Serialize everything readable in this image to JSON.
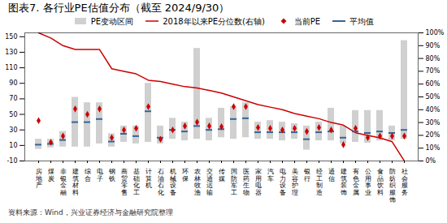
{
  "chart_data": {
    "type": "bar",
    "title": "图表7. 各行业PE估值分布（截至 2024/9/30）",
    "annotations": [
      "资料来源：Wind，兴业证券经济与金融研究院整理"
    ],
    "categories": [
      "房地产",
      "煤炭",
      "非银金融",
      "建筑材料",
      "综合",
      "电子",
      "钢铁",
      "商贸零售",
      "基础化工",
      "计算机",
      "石油石化",
      "机械设备",
      "环保",
      "农林牧渔",
      "交通运输",
      "传媒",
      "国防军工",
      "医药生物",
      "家用电器",
      "汽车",
      "电力设备",
      "美容护理",
      "银行",
      "经工制造",
      "通信",
      "建筑装饰",
      "有色金属",
      "公用事业",
      "食品饮料",
      "防纺织服饰",
      "社会服务"
    ],
    "series": [
      {
        "name": "PE变动区间",
        "type": "bar",
        "color": "#d0d0d0",
        "bottoms": [
          5,
          7,
          8,
          8,
          8,
          12,
          8,
          14,
          12,
          14,
          12,
          18,
          16,
          18,
          16,
          20,
          18,
          20,
          18,
          18,
          16,
          18,
          4,
          16,
          16,
          12,
          14,
          13,
          16,
          16,
          18
        ],
        "values": [
          18,
          18,
          28,
          72,
          65,
          65,
          25,
          35,
          35,
          90,
          35,
          45,
          40,
          135,
          45,
          58,
          60,
          65,
          40,
          42,
          40,
          38,
          35,
          40,
          58,
          35,
          55,
          55,
          55,
          35,
          145
        ]
      },
      {
        "name": "2018年以来PE分位数(右轴)",
        "type": "line",
        "axis": "y2",
        "color": "#cc0000",
        "values": [
          100,
          96,
          90,
          87,
          87,
          87,
          72,
          70,
          68,
          63,
          62,
          60,
          58,
          57,
          55,
          53,
          50,
          47,
          44,
          42,
          40,
          37,
          35,
          33,
          30,
          28,
          22,
          20,
          18,
          15,
          0
        ]
      },
      {
        "name": "当前PE",
        "type": "scatter",
        "marker": "diamond",
        "color": "#cc0000",
        "values": [
          42,
          14,
          22,
          57,
          50,
          57,
          20,
          30,
          32,
          60,
          18,
          30,
          35,
          40,
          35,
          34,
          60,
          60,
          33,
          32,
          30,
          32,
          28,
          33,
          30,
          11,
          32,
          20,
          22,
          22,
          22
        ]
      },
      {
        "name": "平均值",
        "type": "tick",
        "color": "#336699",
        "values": [
          11,
          12,
          17,
          40,
          40,
          44,
          15,
          25,
          22,
          54,
          20,
          30,
          28,
          35,
          30,
          31,
          44,
          45,
          27,
          27,
          27,
          27,
          18,
          27,
          28,
          20,
          28,
          26,
          28,
          26,
          30
        ]
      }
    ],
    "ylim": [
      -10,
      155
    ],
    "yticks": [
      -10,
      10,
      30,
      50,
      70,
      90,
      110,
      130,
      150
    ],
    "y2lim": [
      0,
      100
    ],
    "y2ticks": [
      {
        "value": 0,
        "label": "0%"
      },
      {
        "value": 10,
        "label": "10%"
      },
      {
        "value": 20,
        "label": "20%"
      },
      {
        "value": 30,
        "label": "30%"
      },
      {
        "value": 40,
        "label": "40%"
      },
      {
        "value": 50,
        "label": "50%"
      },
      {
        "value": 60,
        "label": "60%"
      },
      {
        "value": 70,
        "label": "70%"
      },
      {
        "value": 80,
        "label": "80%"
      },
      {
        "value": 90,
        "label": "90%"
      },
      {
        "value": 100,
        "label": "100%"
      }
    ],
    "grid": false,
    "legend": "top"
  }
}
